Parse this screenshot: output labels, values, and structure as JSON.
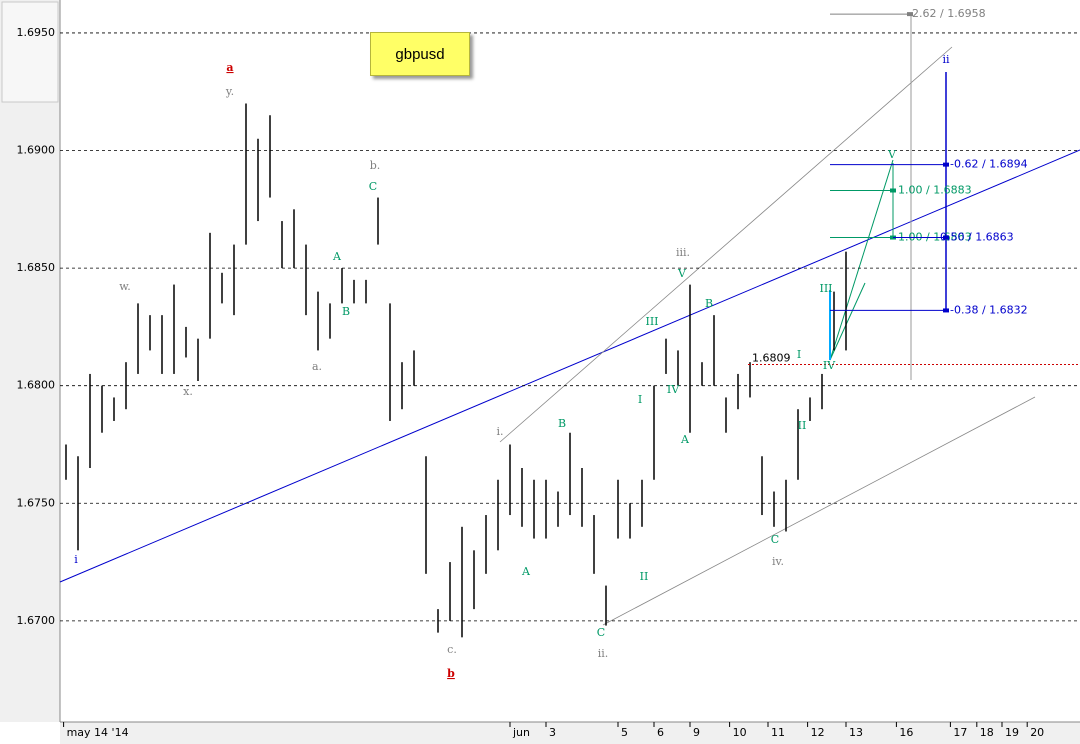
{
  "chart_data": {
    "type": "ohlc",
    "symbol": "gbpusd",
    "ylim": [
      1.6657,
      1.6964
    ],
    "yticks": [
      {
        "value": 1.67,
        "label": "1.6700"
      },
      {
        "value": 1.675,
        "label": "1.6750"
      },
      {
        "value": 1.68,
        "label": "1.6800"
      },
      {
        "value": 1.685,
        "label": "1.6850"
      },
      {
        "value": 1.69,
        "label": "1.6900"
      },
      {
        "value": 1.695,
        "label": "1.6950"
      }
    ],
    "xlim": [
      0,
      85
    ],
    "xticks": [
      {
        "value": 0.3,
        "label": "may 14 '14"
      },
      {
        "value": 37.5,
        "label": "jun"
      },
      {
        "value": 40.5,
        "label": "3"
      },
      {
        "value": 46.5,
        "label": "5"
      },
      {
        "value": 49.5,
        "label": "6"
      },
      {
        "value": 52.5,
        "label": "9"
      },
      {
        "value": 55.8,
        "label": "10"
      },
      {
        "value": 59,
        "label": "11"
      },
      {
        "value": 62.3,
        "label": "12"
      },
      {
        "value": 65.5,
        "label": "13"
      },
      {
        "value": 69.7,
        "label": "16"
      },
      {
        "value": 74.2,
        "label": "17"
      },
      {
        "value": 76.4,
        "label": "18"
      },
      {
        "value": 78.5,
        "label": "19"
      },
      {
        "value": 80.6,
        "label": "20"
      }
    ],
    "high": [
      1.6775,
      1.677,
      1.6805,
      1.68,
      1.6795,
      1.681,
      1.6835,
      1.683,
      1.683,
      1.6843,
      1.6825,
      1.682,
      1.6865,
      1.6848,
      1.686,
      1.692,
      1.6905,
      1.6915,
      1.687,
      1.6875,
      1.686,
      1.684,
      1.6835,
      1.685,
      1.6845,
      1.6845,
      1.688,
      1.6835,
      1.681,
      1.6815,
      1.677,
      1.6705,
      1.6725,
      1.674,
      1.673,
      1.6745,
      1.676,
      1.6775,
      1.6765,
      1.676,
      1.676,
      1.6755,
      1.678,
      1.6765,
      1.6745,
      1.6715,
      1.676,
      1.675,
      1.676,
      1.68,
      1.682,
      1.6815,
      1.6843,
      1.681,
      1.683,
      1.6795,
      1.6805,
      1.681,
      1.677,
      1.6755,
      1.676,
      1.679,
      1.6795,
      1.6805,
      1.684,
      1.6857
    ],
    "low": [
      1.676,
      1.673,
      1.6765,
      1.678,
      1.6785,
      1.679,
      1.6805,
      1.6815,
      1.6805,
      1.6805,
      1.6812,
      1.6802,
      1.682,
      1.6835,
      1.683,
      1.686,
      1.687,
      1.688,
      1.685,
      1.685,
      1.683,
      1.6815,
      1.682,
      1.6835,
      1.6835,
      1.6835,
      1.686,
      1.6785,
      1.679,
      1.68,
      1.672,
      1.6695,
      1.67,
      1.6693,
      1.6705,
      1.672,
      1.673,
      1.6745,
      1.674,
      1.6735,
      1.6735,
      1.674,
      1.6745,
      1.674,
      1.672,
      1.6698,
      1.6735,
      1.6735,
      1.674,
      1.676,
      1.6805,
      1.68,
      1.678,
      1.68,
      1.68,
      1.678,
      1.679,
      1.6795,
      1.6745,
      1.674,
      1.6738,
      1.676,
      1.6785,
      1.679,
      1.6815,
      1.6815
    ],
    "grid": true,
    "color": "#000000",
    "levels": [
      {
        "label": "2.62 / 1.6958",
        "value": 1.6958,
        "color": "#808080"
      },
      {
        "label": "-0.62 / 1.6894",
        "value": 1.6894,
        "color": "#0000cc"
      },
      {
        "label": "1.00 / 1.6883",
        "value": 1.6883,
        "color": "#009966"
      },
      {
        "label": "1.00 / 1.6863",
        "value": 1.6863,
        "color": "#009966"
      },
      {
        "label": "0.50 / 1.6863",
        "value": 1.6863,
        "color": "#0000cc"
      },
      {
        "label": "-0.38 / 1.6832",
        "value": 1.6832,
        "color": "#0000cc"
      }
    ],
    "price_line": {
      "label": "1.6809",
      "value": 1.6809,
      "color": "#cc0000"
    },
    "annotations": [
      {
        "text": "a",
        "color": "#cc0000"
      },
      {
        "text": "y.",
        "color": "#808080"
      },
      {
        "text": "w.",
        "color": "#808080"
      },
      {
        "text": "x.",
        "color": "#808080"
      },
      {
        "text": "i",
        "color": "#0000cc"
      },
      {
        "text": "b.",
        "color": "#808080"
      },
      {
        "text": "C",
        "color": "#009966"
      },
      {
        "text": "A",
        "color": "#009966"
      },
      {
        "text": "B",
        "color": "#009966"
      },
      {
        "text": "a.",
        "color": "#808080"
      },
      {
        "text": "c.",
        "color": "#808080"
      },
      {
        "text": "b",
        "color": "#cc0000"
      },
      {
        "text": "i.",
        "color": "#808080"
      },
      {
        "text": "B",
        "color": "#009966"
      },
      {
        "text": "A",
        "color": "#009966"
      },
      {
        "text": "C",
        "color": "#009966"
      },
      {
        "text": "ii.",
        "color": "#808080"
      },
      {
        "text": "II",
        "color": "#009966"
      },
      {
        "text": "I",
        "color": "#009966"
      },
      {
        "text": "III",
        "color": "#009966"
      },
      {
        "text": "iii.",
        "color": "#808080"
      },
      {
        "text": "V",
        "color": "#009966"
      },
      {
        "text": "IV",
        "color": "#009966"
      },
      {
        "text": "A",
        "color": "#009966"
      },
      {
        "text": "B",
        "color": "#009966"
      },
      {
        "text": "I",
        "color": "#009966"
      },
      {
        "text": "II",
        "color": "#009966"
      },
      {
        "text": "III",
        "color": "#009966"
      },
      {
        "text": "IV",
        "color": "#009966"
      },
      {
        "text": "C",
        "color": "#009966"
      },
      {
        "text": "iv.",
        "color": "#808080"
      },
      {
        "text": "V",
        "color": "#009966"
      },
      {
        "text": "ii",
        "color": "#0000cc"
      }
    ]
  }
}
